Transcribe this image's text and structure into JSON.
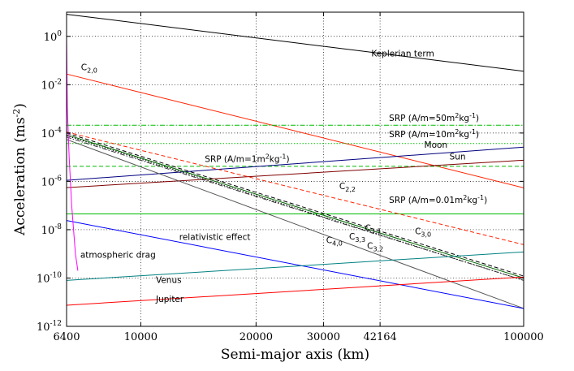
{
  "chart_data": {
    "type": "line",
    "title": "",
    "xlabel": "Semi-major axis (km)",
    "ylabel": "Acceleration (ms-2)",
    "x_scale": "log",
    "y_scale": "log",
    "xlim": [
      6400,
      100000
    ],
    "ylim": [
      1e-12,
      10
    ],
    "grid": true,
    "x_ticks": [
      {
        "value": 6400,
        "label": "6400"
      },
      {
        "value": 10000,
        "label": "10000"
      },
      {
        "value": 20000,
        "label": "20000"
      },
      {
        "value": 30000,
        "label": "30000"
      },
      {
        "value": 42164,
        "label": "42164"
      },
      {
        "value": 100000,
        "label": "100000"
      }
    ],
    "y_ticks": [
      {
        "value": 1,
        "base": "10",
        "exp": "0"
      },
      {
        "value": 0.01,
        "base": "10",
        "exp": "-2"
      },
      {
        "value": 0.0001,
        "base": "10",
        "exp": "-4"
      },
      {
        "value": 1e-06,
        "base": "10",
        "exp": "-6"
      },
      {
        "value": 1e-08,
        "base": "10",
        "exp": "-8"
      },
      {
        "value": 1e-10,
        "base": "10",
        "exp": "-10"
      },
      {
        "value": 1e-12,
        "base": "10",
        "exp": "-12"
      }
    ],
    "series": [
      {
        "id": "keplerian",
        "color": "#000000",
        "dash": "solid",
        "x": [
          6400,
          100000
        ],
        "y": [
          8.2,
          0.036
        ]
      },
      {
        "id": "c20",
        "color": "#ff2200",
        "dash": "solid",
        "x": [
          6400,
          100000
        ],
        "y": [
          0.0276,
          5.4e-07
        ]
      },
      {
        "id": "srp50",
        "color": "#00bb00",
        "dash": "dashdot",
        "x": [
          6400,
          100000
        ],
        "y": [
          0.00021,
          0.00021
        ]
      },
      {
        "id": "srp10",
        "color": "#00bb00",
        "dash": "dotted",
        "x": [
          6400,
          100000
        ],
        "y": [
          3.7e-05,
          3.7e-05
        ]
      },
      {
        "id": "srp1",
        "color": "#00bb00",
        "dash": "dashed",
        "x": [
          6400,
          100000
        ],
        "y": [
          4.2e-06,
          4.2e-06
        ]
      },
      {
        "id": "srp001",
        "color": "#00bb00",
        "dash": "solid",
        "x": [
          6400,
          100000
        ],
        "y": [
          4.5e-08,
          4.5e-08
        ]
      },
      {
        "id": "moon",
        "color": "#000080",
        "dash": "solid",
        "x": [
          6400,
          100000
        ],
        "y": [
          1.1e-06,
          2.6e-05
        ]
      },
      {
        "id": "sun",
        "color": "#800000",
        "dash": "solid",
        "x": [
          6400,
          100000
        ],
        "y": [
          5.5e-07,
          7.5e-06
        ]
      },
      {
        "id": "c22",
        "color": "#ff2200",
        "dash": "dashed",
        "x": [
          6400,
          100000
        ],
        "y": [
          0.00011,
          2.4e-09
        ]
      },
      {
        "id": "c30",
        "color": "#000000",
        "dash": "dashed",
        "x": [
          6400,
          100000
        ],
        "y": [
          0.0001,
          1.2e-10
        ]
      },
      {
        "id": "c31",
        "color": "#006600",
        "dash": "solid",
        "x": [
          6400,
          100000
        ],
        "y": [
          8.5e-05,
          1e-10
        ]
      },
      {
        "id": "c33",
        "color": "#000000",
        "dash": "dotted",
        "x": [
          6400,
          100000
        ],
        "y": [
          7.8e-05,
          8e-11
        ]
      },
      {
        "id": "c32",
        "color": "#333333",
        "dash": "dashdot",
        "x": [
          6400,
          100000
        ],
        "y": [
          6.8e-05,
          8e-11
        ]
      },
      {
        "id": "c40",
        "color": "#555555",
        "dash": "solid",
        "x": [
          6400,
          100000
        ],
        "y": [
          5.4e-05,
          5.5e-12
        ]
      },
      {
        "id": "relativistic",
        "color": "#0000ff",
        "dash": "solid",
        "x": [
          6400,
          100000
        ],
        "y": [
          2.4e-08,
          5.5e-12
        ]
      },
      {
        "id": "venus",
        "color": "#008080",
        "dash": "solid",
        "x": [
          6400,
          100000
        ],
        "y": [
          8e-11,
          1.2e-09
        ]
      },
      {
        "id": "jupiter",
        "color": "#ff0000",
        "dash": "solid",
        "x": [
          6400,
          100000
        ],
        "y": [
          7.5e-12,
          1.1e-10
        ]
      },
      {
        "id": "atmospheric_drag",
        "color": "#ff00ff",
        "dash": "solid",
        "x": [
          6400,
          6430,
          6500,
          6600,
          6750,
          6850
        ],
        "y": [
          1,
          0.001,
          1e-05,
          1e-07,
          1e-09,
          2e-10
        ]
      }
    ],
    "annotations": [
      {
        "id": "ann-keplerian",
        "text": "Keplerian term",
        "x": 40000,
        "y": 0.15
      },
      {
        "id": "ann-c20",
        "text": "C",
        "sub": "2,0",
        "x": 6980,
        "y": 0.04
      },
      {
        "id": "ann-srp50",
        "text": "SRP (A/m=50m",
        "sup": "2",
        "tail": "kg",
        "sup2": "-1",
        "end": ")",
        "x": 44500,
        "y": 0.00032
      },
      {
        "id": "ann-srp10",
        "text": "SRP (A/m=10m",
        "sup": "2",
        "tail": "kg",
        "sup2": "-1",
        "end": ")",
        "x": 44500,
        "y": 6.8e-05
      },
      {
        "id": "ann-moon",
        "text": "Moon",
        "x": 55000,
        "y": 2.5e-05
      },
      {
        "id": "ann-srp1",
        "text": "SRP (A/m=1m",
        "sup": "2",
        "tail": "kg",
        "sup2": "-1",
        "end": ")",
        "x": 14700,
        "y": 6.3e-06
      },
      {
        "id": "ann-sun",
        "text": "Sun",
        "x": 64000,
        "y": 8e-06
      },
      {
        "id": "ann-c22",
        "text": "C",
        "sub": "2,2",
        "x": 33000,
        "y": 4.8e-07
      },
      {
        "id": "ann-srp001",
        "text": "SRP (A/m=0.01m",
        "sup": "2",
        "tail": "kg",
        "sup2": "-1",
        "end": ")",
        "x": 44500,
        "y": 1.3e-07
      },
      {
        "id": "ann-c31",
        "text": "C",
        "sub": "3,1",
        "x": 38500,
        "y": 9e-09
      },
      {
        "id": "ann-c30",
        "text": "C",
        "sub": "3,0",
        "x": 52000,
        "y": 6.5e-09
      },
      {
        "id": "ann-c33",
        "text": "C",
        "sub": "3,3",
        "x": 35000,
        "y": 4e-09
      },
      {
        "id": "ann-c40",
        "text": "C",
        "sub": "4,0",
        "x": 30500,
        "y": 2.8e-09
      },
      {
        "id": "ann-c32",
        "text": "C",
        "sub": "3,2",
        "x": 39000,
        "y": 1.6e-09
      },
      {
        "id": "ann-relativistic",
        "text": "relativistic effect",
        "x": 12600,
        "y": 3.8e-09
      },
      {
        "id": "ann-drag",
        "text": "atmospheric drag",
        "x": 6950,
        "y": 7e-10
      },
      {
        "id": "ann-venus",
        "text": "Venus",
        "x": 10950,
        "y": 6.2e-11
      },
      {
        "id": "ann-jupiter",
        "text": "Jupiter",
        "x": 10950,
        "y": 1e-11
      }
    ]
  }
}
